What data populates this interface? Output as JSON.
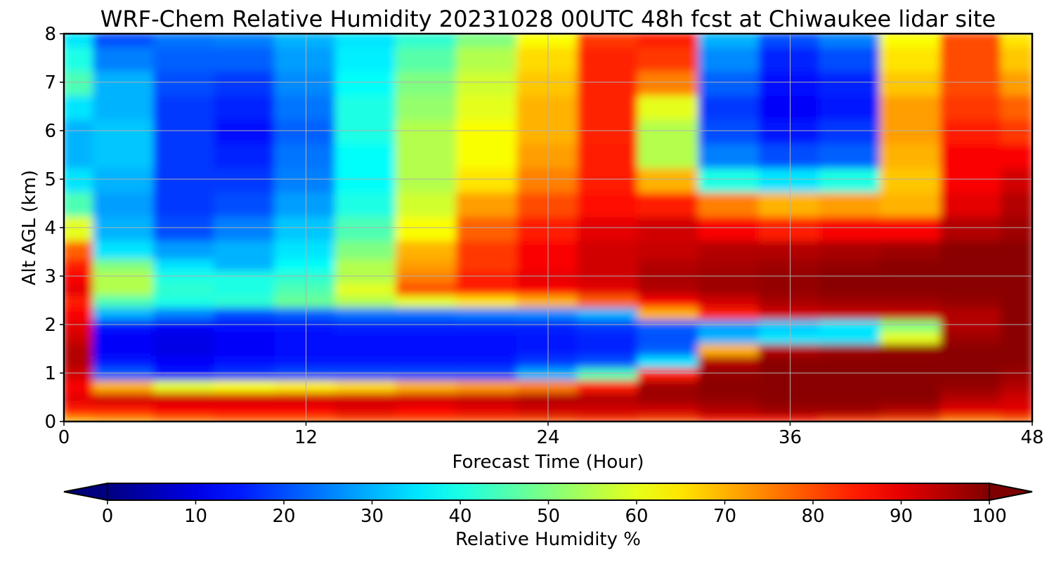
{
  "chart_data": {
    "type": "heatmap",
    "title": "WRF-Chem Relative Humidity 20231028 00UTC 48h fcst at Chiwaukee lidar site",
    "xlabel": "Forecast Time (Hour)",
    "ylabel": "Alt AGL (km)",
    "xlim": [
      0,
      48
    ],
    "ylim": [
      0,
      8
    ],
    "x_ticks": [
      "0",
      "12",
      "24",
      "36",
      "48"
    ],
    "y_ticks": [
      "0",
      "1",
      "2",
      "3",
      "4",
      "5",
      "6",
      "7",
      "8"
    ],
    "grid": true,
    "colormap": "jet",
    "colorbar": {
      "label": "Relative Humidity %",
      "range": [
        0,
        100
      ],
      "ticks": [
        "0",
        "10",
        "20",
        "30",
        "40",
        "50",
        "60",
        "70",
        "80",
        "90",
        "100"
      ],
      "extend": "both",
      "orientation": "horizontal"
    },
    "x": [
      0,
      3,
      6,
      9,
      12,
      15,
      18,
      21,
      24,
      27,
      30,
      33,
      36,
      39,
      42,
      45,
      48
    ],
    "y": [
      0,
      0.25,
      0.5,
      0.75,
      1,
      1.25,
      1.5,
      1.75,
      2,
      2.25,
      2.5,
      2.75,
      3,
      3.25,
      3.5,
      4,
      4.5,
      5,
      5.5,
      6,
      6.5,
      7,
      7.5,
      8
    ],
    "z": [
      [
        70,
        72,
        76,
        78,
        78,
        80,
        80,
        80,
        80,
        82,
        80,
        85,
        85,
        82,
        80,
        75,
        78
      ],
      [
        85,
        85,
        88,
        88,
        88,
        90,
        88,
        90,
        92,
        92,
        92,
        95,
        97,
        97,
        95,
        90,
        90
      ],
      [
        90,
        92,
        92,
        92,
        92,
        92,
        92,
        93,
        95,
        95,
        97,
        98,
        99,
        99,
        99,
        95,
        92
      ],
      [
        88,
        70,
        60,
        62,
        64,
        66,
        70,
        72,
        75,
        85,
        97,
        99,
        99,
        99,
        99,
        98,
        95
      ],
      [
        92,
        22,
        15,
        18,
        20,
        20,
        20,
        20,
        30,
        45,
        85,
        98,
        99,
        99,
        99,
        99,
        97
      ],
      [
        95,
        15,
        12,
        14,
        15,
        15,
        15,
        15,
        18,
        20,
        35,
        95,
        99,
        99,
        99,
        99,
        99
      ],
      [
        95,
        12,
        10,
        12,
        14,
        14,
        14,
        14,
        15,
        16,
        22,
        70,
        95,
        97,
        98,
        99,
        99
      ],
      [
        92,
        12,
        10,
        12,
        14,
        14,
        14,
        14,
        15,
        16,
        20,
        30,
        35,
        35,
        60,
        97,
        99
      ],
      [
        90,
        15,
        12,
        14,
        15,
        16,
        16,
        16,
        16,
        18,
        22,
        28,
        32,
        35,
        50,
        95,
        99
      ],
      [
        88,
        30,
        25,
        20,
        22,
        24,
        24,
        25,
        26,
        30,
        70,
        85,
        92,
        93,
        93,
        95,
        99
      ],
      [
        85,
        45,
        40,
        42,
        48,
        55,
        60,
        65,
        70,
        78,
        88,
        92,
        96,
        97,
        97,
        98,
        99
      ],
      [
        90,
        55,
        42,
        40,
        45,
        60,
        80,
        85,
        88,
        90,
        95,
        97,
        98,
        99,
        99,
        99,
        99
      ],
      [
        88,
        55,
        40,
        40,
        42,
        55,
        75,
        85,
        90,
        92,
        96,
        97,
        98,
        99,
        99,
        99,
        99
      ],
      [
        85,
        50,
        35,
        30,
        38,
        55,
        72,
        82,
        88,
        92,
        95,
        96,
        97,
        98,
        99,
        99,
        99
      ],
      [
        78,
        35,
        28,
        30,
        35,
        50,
        70,
        82,
        88,
        92,
        93,
        95,
        95,
        96,
        97,
        99,
        99
      ],
      [
        60,
        30,
        20,
        25,
        32,
        45,
        62,
        78,
        85,
        90,
        92,
        88,
        85,
        88,
        88,
        95,
        97
      ],
      [
        45,
        28,
        18,
        20,
        28,
        40,
        58,
        72,
        80,
        86,
        85,
        75,
        70,
        72,
        70,
        90,
        95
      ],
      [
        35,
        30,
        18,
        18,
        25,
        38,
        55,
        65,
        75,
        85,
        70,
        40,
        35,
        40,
        68,
        88,
        92
      ],
      [
        30,
        32,
        18,
        16,
        24,
        38,
        55,
        62,
        72,
        85,
        55,
        25,
        20,
        22,
        70,
        88,
        88
      ],
      [
        30,
        32,
        18,
        14,
        22,
        40,
        55,
        62,
        70,
        84,
        55,
        20,
        15,
        18,
        72,
        85,
        82
      ],
      [
        35,
        30,
        18,
        16,
        24,
        40,
        52,
        60,
        70,
        84,
        60,
        18,
        12,
        15,
        72,
        82,
        78
      ],
      [
        45,
        30,
        20,
        18,
        26,
        38,
        50,
        58,
        68,
        84,
        75,
        22,
        14,
        16,
        68,
        80,
        72
      ],
      [
        40,
        25,
        22,
        22,
        28,
        36,
        46,
        55,
        66,
        84,
        82,
        26,
        16,
        20,
        65,
        80,
        68
      ],
      [
        35,
        20,
        24,
        25,
        30,
        35,
        42,
        50,
        62,
        82,
        85,
        30,
        20,
        25,
        62,
        80,
        65
      ]
    ]
  }
}
